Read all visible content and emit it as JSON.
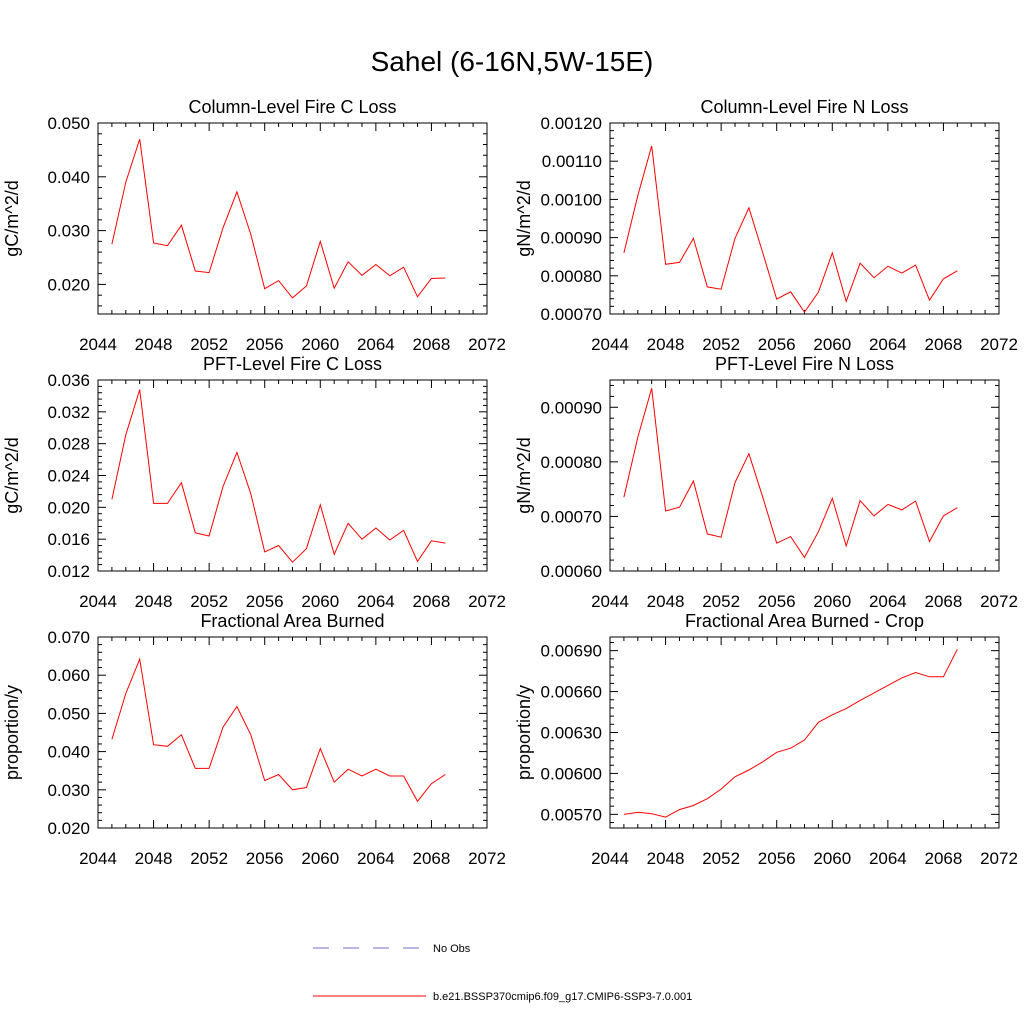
{
  "figure": {
    "title": "Sahel (6-16N,5W-15E)"
  },
  "legend": {
    "items": [
      {
        "label": "No Obs",
        "color": "#6f6fd0",
        "dash": true
      },
      {
        "label": "b.e21.BSSP370cmip6.f09_g17.CMIP6-SSP3-7.0.001",
        "color": "#ff0000",
        "dash": false
      }
    ]
  },
  "chart_data": [
    {
      "type": "line",
      "title": "Column-Level Fire C Loss",
      "ylabel": "gC/m^2/d",
      "xlim": [
        2044,
        2072
      ],
      "xticks": [
        2044,
        2048,
        2052,
        2056,
        2060,
        2064,
        2068,
        2072
      ],
      "ylim": [
        0.0145,
        0.05
      ],
      "yticks": [
        0.02,
        0.03,
        0.04,
        0.05
      ],
      "ytick_labels": [
        "0.020",
        "0.030",
        "0.040",
        "0.050"
      ],
      "x": [
        2045,
        2046,
        2047,
        2048,
        2049,
        2050,
        2051,
        2052,
        2053,
        2054,
        2055,
        2056,
        2057,
        2058,
        2059,
        2060,
        2061,
        2062,
        2063,
        2064,
        2065,
        2066,
        2067,
        2068,
        2069
      ],
      "series": [
        {
          "color": "#ff0000",
          "values": [
            0.0275,
            0.039,
            0.047,
            0.0277,
            0.0272,
            0.031,
            0.0225,
            0.0222,
            0.0305,
            0.0372,
            0.0293,
            0.0192,
            0.0207,
            0.0175,
            0.0197,
            0.028,
            0.0193,
            0.0242,
            0.0217,
            0.0237,
            0.0216,
            0.0232,
            0.0177,
            0.0211,
            0.0212
          ]
        }
      ]
    },
    {
      "type": "line",
      "title": "Column-Level Fire N Loss",
      "ylabel": "gN/m^2/d",
      "xlim": [
        2044,
        2072
      ],
      "xticks": [
        2044,
        2048,
        2052,
        2056,
        2060,
        2064,
        2068,
        2072
      ],
      "ylim": [
        0.0007,
        0.0012
      ],
      "yticks": [
        0.0007,
        0.0008,
        0.0009,
        0.001,
        0.0011,
        0.0012
      ],
      "ytick_labels": [
        "0.00070",
        "0.00080",
        "0.00090",
        "0.00100",
        "0.00110",
        "0.00120"
      ],
      "x": [
        2045,
        2046,
        2047,
        2048,
        2049,
        2050,
        2051,
        2052,
        2053,
        2054,
        2055,
        2056,
        2057,
        2058,
        2059,
        2060,
        2061,
        2062,
        2063,
        2064,
        2065,
        2066,
        2067,
        2068,
        2069
      ],
      "series": [
        {
          "color": "#ff0000",
          "values": [
            0.00086,
            0.00101,
            0.00114,
            0.00083,
            0.000835,
            0.000898,
            0.000771,
            0.000765,
            0.000898,
            0.000978,
            0.00086,
            0.000739,
            0.000758,
            0.000705,
            0.000757,
            0.00086,
            0.000733,
            0.000833,
            0.000795,
            0.000825,
            0.000807,
            0.000828,
            0.000736,
            0.000792,
            0.000813
          ]
        }
      ]
    },
    {
      "type": "line",
      "title": "PFT-Level Fire C Loss",
      "ylabel": "gC/m^2/d",
      "xlim": [
        2044,
        2072
      ],
      "xticks": [
        2044,
        2048,
        2052,
        2056,
        2060,
        2064,
        2068,
        2072
      ],
      "ylim": [
        0.012,
        0.036
      ],
      "yticks": [
        0.012,
        0.016,
        0.02,
        0.024,
        0.028,
        0.032,
        0.036
      ],
      "ytick_labels": [
        "0.012",
        "0.016",
        "0.020",
        "0.024",
        "0.028",
        "0.032",
        "0.036"
      ],
      "x": [
        2045,
        2046,
        2047,
        2048,
        2049,
        2050,
        2051,
        2052,
        2053,
        2054,
        2055,
        2056,
        2057,
        2058,
        2059,
        2060,
        2061,
        2062,
        2063,
        2064,
        2065,
        2066,
        2067,
        2068,
        2069
      ],
      "series": [
        {
          "color": "#ff0000",
          "values": [
            0.021,
            0.0291,
            0.0348,
            0.0205,
            0.0205,
            0.0231,
            0.0168,
            0.0164,
            0.0226,
            0.0269,
            0.0217,
            0.0144,
            0.0152,
            0.0131,
            0.0148,
            0.0203,
            0.0141,
            0.018,
            0.016,
            0.0174,
            0.0159,
            0.0171,
            0.0132,
            0.0158,
            0.0155
          ]
        }
      ]
    },
    {
      "type": "line",
      "title": "PFT-Level Fire N Loss",
      "ylabel": "gN/m^2/d",
      "xlim": [
        2044,
        2072
      ],
      "xticks": [
        2044,
        2048,
        2052,
        2056,
        2060,
        2064,
        2068,
        2072
      ],
      "ylim": [
        0.0006,
        0.00095
      ],
      "yticks": [
        0.0006,
        0.0007,
        0.0008,
        0.0009
      ],
      "ytick_labels": [
        "0.00060",
        "0.00070",
        "0.00080",
        "0.00090"
      ],
      "x": [
        2045,
        2046,
        2047,
        2048,
        2049,
        2050,
        2051,
        2052,
        2053,
        2054,
        2055,
        2056,
        2057,
        2058,
        2059,
        2060,
        2061,
        2062,
        2063,
        2064,
        2065,
        2066,
        2067,
        2068,
        2069
      ],
      "series": [
        {
          "color": "#ff0000",
          "values": [
            0.000735,
            0.000845,
            0.000935,
            0.00071,
            0.000717,
            0.000765,
            0.000668,
            0.000662,
            0.000762,
            0.000815,
            0.000735,
            0.000651,
            0.000663,
            0.000625,
            0.000672,
            0.000733,
            0.000646,
            0.000729,
            0.000701,
            0.000722,
            0.000712,
            0.000728,
            0.000654,
            0.000701,
            0.000716
          ]
        }
      ]
    },
    {
      "type": "line",
      "title": "Fractional Area Burned",
      "ylabel": "proportion/y",
      "xlim": [
        2044,
        2072
      ],
      "xticks": [
        2044,
        2048,
        2052,
        2056,
        2060,
        2064,
        2068,
        2072
      ],
      "ylim": [
        0.02,
        0.07
      ],
      "yticks": [
        0.02,
        0.03,
        0.04,
        0.05,
        0.06,
        0.07
      ],
      "ytick_labels": [
        "0.020",
        "0.030",
        "0.040",
        "0.050",
        "0.060",
        "0.070"
      ],
      "x": [
        2045,
        2046,
        2047,
        2048,
        2049,
        2050,
        2051,
        2052,
        2053,
        2054,
        2055,
        2056,
        2057,
        2058,
        2059,
        2060,
        2061,
        2062,
        2063,
        2064,
        2065,
        2066,
        2067,
        2068,
        2069
      ],
      "series": [
        {
          "color": "#ff0000",
          "values": [
            0.0432,
            0.0552,
            0.0642,
            0.0418,
            0.0414,
            0.0444,
            0.0356,
            0.0356,
            0.0464,
            0.0518,
            0.0444,
            0.0324,
            0.034,
            0.03,
            0.0306,
            0.0408,
            0.032,
            0.0354,
            0.0336,
            0.0354,
            0.0336,
            0.0336,
            0.027,
            0.0316,
            0.034
          ]
        }
      ]
    },
    {
      "type": "line",
      "title": "Fractional Area Burned - Crop",
      "ylabel": "proportion/y",
      "xlim": [
        2044,
        2072
      ],
      "xticks": [
        2044,
        2048,
        2052,
        2056,
        2060,
        2064,
        2068,
        2072
      ],
      "ylim": [
        0.0056,
        0.007
      ],
      "yticks": [
        0.0057,
        0.006,
        0.0063,
        0.0066,
        0.0069
      ],
      "ytick_labels": [
        "0.00570",
        "0.00600",
        "0.00630",
        "0.00660",
        "0.00690"
      ],
      "x": [
        2045,
        2046,
        2047,
        2048,
        2049,
        2050,
        2051,
        2052,
        2053,
        2054,
        2055,
        2056,
        2057,
        2058,
        2059,
        2060,
        2061,
        2062,
        2063,
        2064,
        2065,
        2066,
        2067,
        2068,
        2069
      ],
      "series": [
        {
          "color": "#ff0000",
          "values": [
            0.0057,
            0.005715,
            0.005705,
            0.00568,
            0.005735,
            0.005765,
            0.005815,
            0.005885,
            0.005975,
            0.006025,
            0.006085,
            0.006155,
            0.006185,
            0.006245,
            0.006375,
            0.00643,
            0.006475,
            0.006535,
            0.00659,
            0.006645,
            0.0067,
            0.00674,
            0.006708,
            0.006708,
            0.00691
          ]
        }
      ]
    }
  ]
}
